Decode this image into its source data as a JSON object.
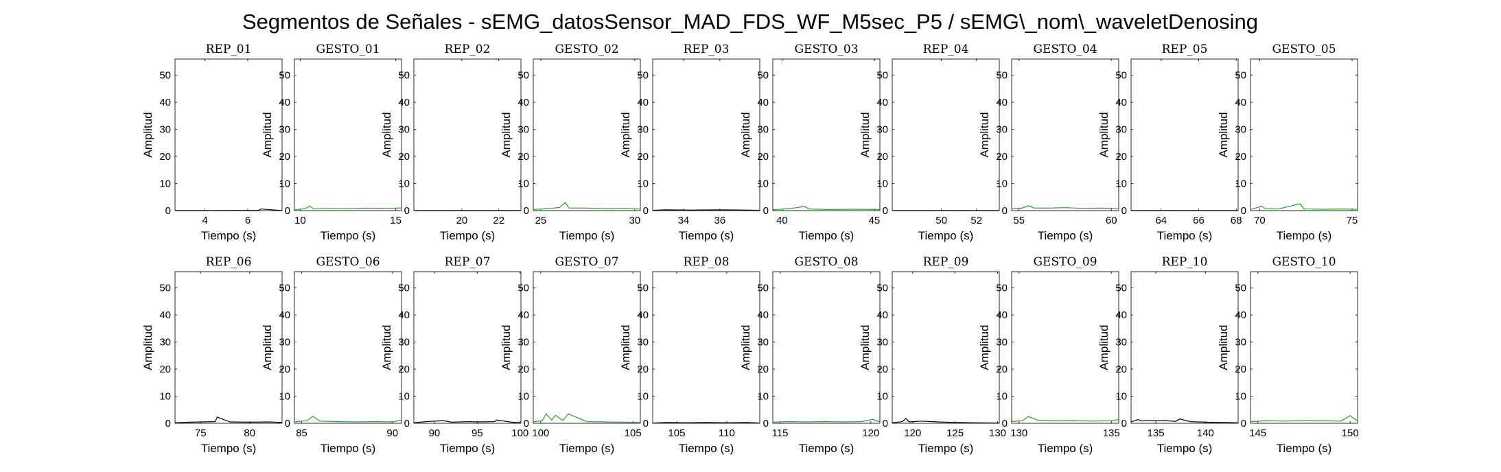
{
  "figure": {
    "title": "Segmentos de Señales - sEMG_datosSensor_MAD_FDS_WF_M5sec_P5 / sEMG\\_nom\\_waveletDenosing"
  },
  "colors": {
    "rep": "#000000",
    "gesto": "#2e9a2e"
  },
  "chart_data": [
    {
      "type": "line",
      "title": "REP_01",
      "series_color": "rep",
      "xlim": [
        2.6,
        7.6
      ],
      "xticks": [
        4,
        6
      ],
      "ylim": [
        0,
        56
      ],
      "yticks": [
        0,
        10,
        20,
        30,
        40,
        50
      ],
      "xlabel": "Tiempo (s)",
      "ylabel": "Amplitud",
      "x": [
        2.6,
        4.0,
        5.6,
        6.5,
        6.6,
        7.6
      ],
      "y": [
        0.05,
        0.06,
        0.08,
        0.1,
        0.6,
        0.05
      ]
    },
    {
      "type": "line",
      "title": "GESTO_01",
      "series_color": "gesto",
      "xlim": [
        9.7,
        15.3
      ],
      "xticks": [
        10,
        15
      ],
      "ylim": [
        0,
        56
      ],
      "yticks": [
        0,
        10,
        20,
        30,
        40,
        50
      ],
      "xlabel": "Tiempo (s)",
      "ylabel": "Amplitud",
      "x": [
        9.7,
        10.3,
        10.5,
        10.7,
        11.5,
        12.5,
        13.5,
        14.5,
        15.3
      ],
      "y": [
        0.3,
        0.8,
        1.7,
        0.6,
        0.8,
        0.7,
        0.9,
        0.8,
        1.0
      ]
    },
    {
      "type": "line",
      "title": "REP_02",
      "series_color": "rep",
      "xlim": [
        17.4,
        23.2
      ],
      "xticks": [
        20,
        22
      ],
      "ylim": [
        0,
        56
      ],
      "yticks": [
        0,
        10,
        20,
        30,
        40,
        50
      ],
      "xlabel": "Tiempo (s)",
      "ylabel": "Amplitud",
      "x": [
        17.4,
        19.0,
        21.0,
        23.2
      ],
      "y": [
        0.04,
        0.05,
        0.06,
        0.05
      ]
    },
    {
      "type": "line",
      "title": "GESTO_02",
      "series_color": "gesto",
      "xlim": [
        24.6,
        30.3
      ],
      "xticks": [
        25,
        30
      ],
      "ylim": [
        0,
        56
      ],
      "yticks": [
        0,
        10,
        20,
        30,
        40,
        50
      ],
      "xlabel": "Tiempo (s)",
      "ylabel": "Amplitud",
      "x": [
        24.6,
        25.5,
        26.0,
        26.3,
        26.5,
        27.5,
        28.5,
        29.5,
        30.3
      ],
      "y": [
        0.4,
        0.8,
        1.2,
        3.0,
        1.0,
        0.9,
        0.7,
        0.8,
        0.6
      ]
    },
    {
      "type": "line",
      "title": "REP_03",
      "series_color": "rep",
      "xlim": [
        32.3,
        38.2
      ],
      "xticks": [
        34,
        36
      ],
      "ylim": [
        0,
        56
      ],
      "yticks": [
        0,
        10,
        20,
        30,
        40,
        50
      ],
      "xlabel": "Tiempo (s)",
      "ylabel": "Amplitud",
      "x": [
        32.3,
        33.0,
        34.5,
        36.0,
        37.5,
        38.2
      ],
      "y": [
        0.1,
        0.3,
        0.2,
        0.3,
        0.2,
        0.1
      ]
    },
    {
      "type": "line",
      "title": "GESTO_03",
      "series_color": "gesto",
      "xlim": [
        39.5,
        45.3
      ],
      "xticks": [
        40,
        45
      ],
      "ylim": [
        0,
        56
      ],
      "yticks": [
        0,
        10,
        20,
        30,
        40,
        50
      ],
      "xlabel": "Tiempo (s)",
      "ylabel": "Amplitud",
      "x": [
        39.5,
        40.5,
        41.2,
        41.5,
        42.5,
        44.0,
        45.3
      ],
      "y": [
        0.3,
        0.8,
        1.5,
        0.6,
        0.4,
        0.5,
        0.4
      ]
    },
    {
      "type": "line",
      "title": "REP_04",
      "series_color": "rep",
      "xlim": [
        47.2,
        53.3
      ],
      "xticks": [
        50,
        52
      ],
      "ylim": [
        0,
        56
      ],
      "yticks": [
        0,
        10,
        20,
        30,
        40,
        50
      ],
      "xlabel": "Tiempo (s)",
      "ylabel": "Amplitud",
      "x": [
        47.2,
        49.0,
        51.0,
        53.3
      ],
      "y": [
        0.04,
        0.05,
        0.05,
        0.04
      ]
    },
    {
      "type": "line",
      "title": "GESTO_04",
      "series_color": "gesto",
      "xlim": [
        54.6,
        60.4
      ],
      "xticks": [
        55,
        60
      ],
      "ylim": [
        0,
        56
      ],
      "yticks": [
        0,
        10,
        20,
        30,
        40,
        50
      ],
      "xlabel": "Tiempo (s)",
      "ylabel": "Amplitud",
      "x": [
        54.6,
        55.2,
        55.5,
        55.8,
        56.5,
        57.5,
        58.5,
        59.5,
        60.4
      ],
      "y": [
        0.6,
        1.0,
        1.8,
        1.0,
        0.9,
        1.1,
        0.8,
        0.9,
        0.7
      ]
    },
    {
      "type": "line",
      "title": "REP_05",
      "series_color": "rep",
      "xlim": [
        62.4,
        68.1
      ],
      "xticks": [
        64,
        66,
        68
      ],
      "ylim": [
        0,
        56
      ],
      "yticks": [
        0,
        10,
        20,
        30,
        40,
        50
      ],
      "xlabel": "Tiempo (s)",
      "ylabel": "Amplitud",
      "x": [
        62.4,
        64.0,
        66.0,
        68.1
      ],
      "y": [
        0.04,
        0.05,
        0.05,
        0.04
      ]
    },
    {
      "type": "line",
      "title": "GESTO_05",
      "series_color": "gesto",
      "xlim": [
        69.5,
        75.3
      ],
      "xticks": [
        70,
        75
      ],
      "ylim": [
        0,
        56
      ],
      "yticks": [
        0,
        10,
        20,
        30,
        40,
        50
      ],
      "xlabel": "Tiempo (s)",
      "ylabel": "Amplitud",
      "x": [
        69.5,
        70.1,
        70.3,
        71.0,
        72.2,
        72.4,
        73.5,
        74.5,
        75.3
      ],
      "y": [
        0.4,
        1.6,
        0.7,
        0.6,
        2.5,
        0.6,
        0.5,
        0.6,
        0.5
      ]
    },
    {
      "type": "line",
      "title": "REP_06",
      "series_color": "rep",
      "xlim": [
        72.4,
        83.3
      ],
      "xticks": [
        75,
        80
      ],
      "ylim": [
        0,
        56
      ],
      "yticks": [
        0,
        10,
        20,
        30,
        40,
        50
      ],
      "xlabel": "Tiempo (s)",
      "ylabel": "Amplitud",
      "x": [
        72.4,
        74.0,
        76.5,
        76.7,
        78.0,
        80.0,
        82.0,
        83.3
      ],
      "y": [
        0.2,
        0.4,
        0.6,
        2.3,
        0.5,
        0.4,
        0.5,
        0.3
      ]
    },
    {
      "type": "line",
      "title": "GESTO_06",
      "series_color": "gesto",
      "xlim": [
        84.6,
        90.5
      ],
      "xticks": [
        85,
        90
      ],
      "ylim": [
        0,
        56
      ],
      "yticks": [
        0,
        10,
        20,
        30,
        40,
        50
      ],
      "xlabel": "Tiempo (s)",
      "ylabel": "Amplitud",
      "x": [
        84.6,
        85.3,
        85.6,
        86.0,
        87.0,
        88.0,
        89.0,
        90.0,
        90.5
      ],
      "y": [
        0.5,
        1.0,
        2.6,
        0.8,
        0.6,
        0.5,
        0.6,
        0.5,
        1.2
      ]
    },
    {
      "type": "line",
      "title": "REP_07",
      "series_color": "rep",
      "xlim": [
        87.6,
        100.1
      ],
      "xticks": [
        90,
        95,
        100
      ],
      "ylim": [
        0,
        56
      ],
      "yticks": [
        0,
        10,
        20,
        30,
        40,
        50
      ],
      "xlabel": "Tiempo (s)",
      "ylabel": "Amplitud",
      "x": [
        87.6,
        89.0,
        91.0,
        92.0,
        94.0,
        95.0,
        97.0,
        97.3,
        99.0,
        100.1
      ],
      "y": [
        0.2,
        0.6,
        1.0,
        0.4,
        0.6,
        0.5,
        0.6,
        1.2,
        0.4,
        0.2
      ]
    },
    {
      "type": "line",
      "title": "GESTO_07",
      "series_color": "gesto",
      "xlim": [
        99.6,
        105.4
      ],
      "xticks": [
        100,
        105
      ],
      "ylim": [
        0,
        56
      ],
      "yticks": [
        0,
        10,
        20,
        30,
        40,
        50
      ],
      "xlabel": "Tiempo (s)",
      "ylabel": "Amplitud",
      "x": [
        99.6,
        100.1,
        100.3,
        100.6,
        100.8,
        101.2,
        101.5,
        102.5,
        103.5,
        104.5,
        105.4
      ],
      "y": [
        0.5,
        1.0,
        3.5,
        1.2,
        3.0,
        1.0,
        3.5,
        0.6,
        0.5,
        0.4,
        0.3
      ]
    },
    {
      "type": "line",
      "title": "REP_08",
      "series_color": "rep",
      "xlim": [
        102.6,
        113.3
      ],
      "xticks": [
        105,
        110
      ],
      "ylim": [
        0,
        56
      ],
      "yticks": [
        0,
        10,
        20,
        30,
        40,
        50
      ],
      "xlabel": "Tiempo (s)",
      "ylabel": "Amplitud",
      "x": [
        102.6,
        104.0,
        106.0,
        108.0,
        110.0,
        112.0,
        113.3
      ],
      "y": [
        0.1,
        0.3,
        0.2,
        0.3,
        0.2,
        0.3,
        0.1
      ]
    },
    {
      "type": "line",
      "title": "GESTO_08",
      "series_color": "gesto",
      "xlim": [
        114.6,
        120.5
      ],
      "xticks": [
        115,
        120
      ],
      "ylim": [
        0,
        56
      ],
      "yticks": [
        0,
        10,
        20,
        30,
        40,
        50
      ],
      "xlabel": "Tiempo (s)",
      "ylabel": "Amplitud",
      "x": [
        114.6,
        115.5,
        116.5,
        117.5,
        118.5,
        119.5,
        120.1,
        120.5
      ],
      "y": [
        0.4,
        0.6,
        0.5,
        0.6,
        0.5,
        0.6,
        1.5,
        0.5
      ]
    },
    {
      "type": "line",
      "title": "REP_09",
      "series_color": "rep",
      "xlim": [
        117.6,
        130.2
      ],
      "xticks": [
        120,
        125,
        130
      ],
      "ylim": [
        0,
        56
      ],
      "yticks": [
        0,
        10,
        20,
        30,
        40,
        50
      ],
      "xlabel": "Tiempo (s)",
      "ylabel": "Amplitud",
      "x": [
        117.6,
        118.8,
        119.2,
        119.6,
        121.0,
        123.0,
        125.0,
        127.0,
        130.2
      ],
      "y": [
        0.2,
        0.6,
        1.8,
        0.5,
        0.8,
        0.5,
        0.3,
        0.2,
        0.1
      ]
    },
    {
      "type": "line",
      "title": "GESTO_09",
      "series_color": "gesto",
      "xlim": [
        129.6,
        135.4
      ],
      "xticks": [
        130,
        135
      ],
      "ylim": [
        0,
        56
      ],
      "yticks": [
        0,
        10,
        20,
        30,
        40,
        50
      ],
      "xlabel": "Tiempo (s)",
      "ylabel": "Amplitud",
      "x": [
        129.6,
        130.2,
        130.5,
        131.0,
        132.0,
        133.0,
        134.0,
        135.0,
        135.4
      ],
      "y": [
        0.6,
        1.0,
        2.5,
        1.2,
        0.9,
        1.0,
        0.8,
        0.9,
        1.4
      ]
    },
    {
      "type": "line",
      "title": "REP_10",
      "series_color": "rep",
      "xlim": [
        132.5,
        143.3
      ],
      "xticks": [
        135,
        140
      ],
      "ylim": [
        0,
        56
      ],
      "yticks": [
        0,
        10,
        20,
        30,
        40,
        50
      ],
      "xlabel": "Tiempo (s)",
      "ylabel": "Amplitud",
      "x": [
        132.5,
        133.2,
        133.6,
        134.2,
        135.0,
        136.0,
        137.0,
        137.4,
        138.5,
        140.0,
        142.0,
        143.3
      ],
      "y": [
        0.5,
        1.4,
        0.8,
        1.2,
        0.9,
        1.0,
        0.7,
        1.6,
        0.6,
        0.4,
        0.3,
        0.2
      ]
    },
    {
      "type": "line",
      "title": "GESTO_10",
      "series_color": "gesto",
      "xlim": [
        144.6,
        150.4
      ],
      "xticks": [
        145,
        150
      ],
      "ylim": [
        0,
        56
      ],
      "yticks": [
        0,
        10,
        20,
        30,
        40,
        50
      ],
      "xlabel": "Tiempo (s)",
      "ylabel": "Amplitud",
      "x": [
        144.6,
        145.5,
        146.5,
        147.5,
        148.5,
        149.5,
        150.0,
        150.4
      ],
      "y": [
        0.6,
        1.0,
        0.8,
        1.0,
        0.9,
        0.8,
        2.8,
        0.8
      ]
    }
  ]
}
